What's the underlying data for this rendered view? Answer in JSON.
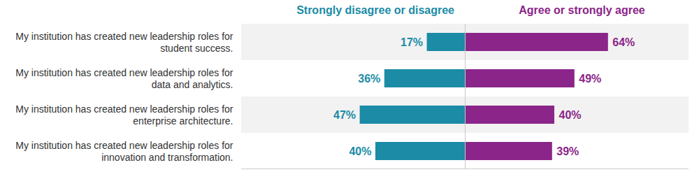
{
  "chart_data": {
    "type": "bar",
    "orientation": "horizontal",
    "categories": [
      "My institution has created new leadership roles for student success.",
      "My institution has created new leadership roles for data and analytics.",
      "My institution has created new leadership roles for enterprise architecture.",
      "My institution has created new leadership roles for innovation and transformation."
    ],
    "series": [
      {
        "name": "Strongly disagree or disagree",
        "color": "#1b8ba6",
        "values": [
          17,
          36,
          47,
          40
        ],
        "value_labels": [
          "17%",
          "36%",
          "47%",
          "40%"
        ]
      },
      {
        "name": "Agree or strongly agree",
        "color": "#8b2589",
        "values": [
          64,
          49,
          40,
          39
        ],
        "value_labels": [
          "64%",
          "49%",
          "40%",
          "39%"
        ]
      }
    ],
    "xlim": [
      0,
      100
    ],
    "xticks": [],
    "data_labels": true,
    "tick_labels": "y",
    "legend": "top"
  }
}
